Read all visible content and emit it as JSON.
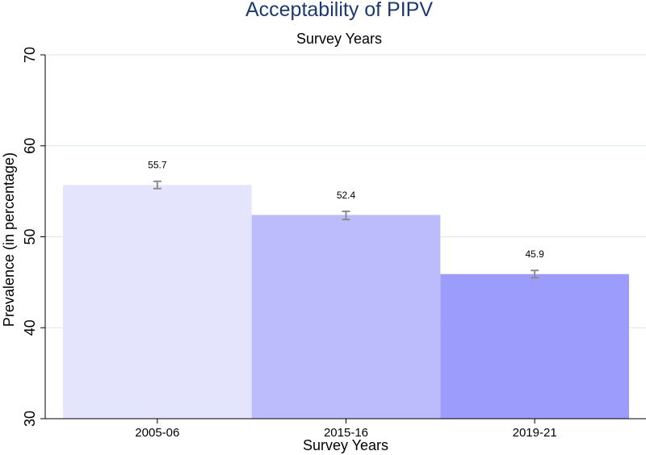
{
  "chart_data": {
    "type": "bar",
    "title": "Acceptability of PIPV",
    "subtitle": "Survey Years",
    "xlabel": "Survey Years",
    "ylabel": "Prevalence (in percentage)",
    "categories": [
      "2005-06",
      "2015-16",
      "2019-21"
    ],
    "values": [
      55.7,
      52.4,
      45.9
    ],
    "data_labels": [
      "55.7",
      "52.4",
      "45.9"
    ],
    "error_bars": [
      {
        "low": 55.3,
        "high": 56.1
      },
      {
        "low": 51.9,
        "high": 52.8
      },
      {
        "low": 45.5,
        "high": 46.3
      }
    ],
    "bar_colors": [
      "#e4e4fc",
      "#bcbcfc",
      "#9c9cfc"
    ],
    "error_bar_color": "#8c8c8c",
    "ylim": [
      30,
      70
    ],
    "yticks": [
      30,
      40,
      50,
      60,
      70
    ],
    "ytick_labels": [
      "30",
      "40",
      "50",
      "60",
      "70"
    ],
    "grid": true,
    "legend": "none"
  }
}
